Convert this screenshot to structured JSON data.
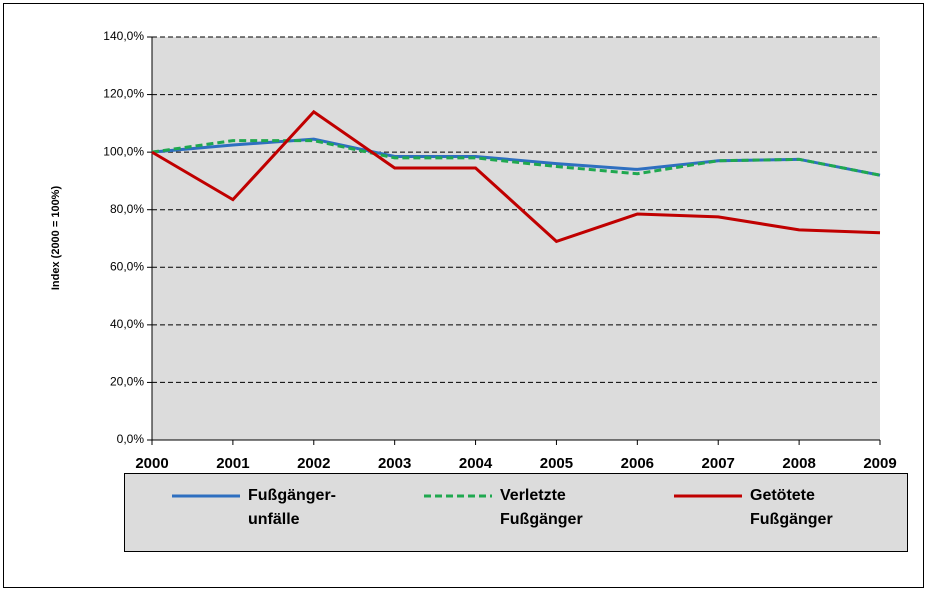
{
  "chart_data": {
    "type": "line",
    "y_label": "Index (2000 = 100%)",
    "x": [
      2000,
      2001,
      2002,
      2003,
      2004,
      2005,
      2006,
      2007,
      2008,
      2009
    ],
    "xlim": [
      2000,
      2009
    ],
    "series": [
      {
        "name": "Fußgänger-\nunfälle",
        "color": "#2e6fc0",
        "dash": false,
        "values": [
          100,
          102.5,
          104.5,
          98.5,
          98.5,
          96,
          94,
          97,
          97.5,
          92
        ]
      },
      {
        "name": "Verletzte\nFußgänger",
        "color": "#1fa84f",
        "dash": true,
        "values": [
          100,
          104,
          104,
          98,
          98,
          95,
          92.5,
          97,
          97.5,
          92
        ]
      },
      {
        "name": "Getötete\nFußgänger",
        "color": "#c00000",
        "dash": false,
        "values": [
          100,
          83.5,
          114,
          94.5,
          94.5,
          69,
          78.5,
          77.5,
          73,
          72
        ]
      }
    ],
    "ylim": [
      0,
      140
    ],
    "yticks": [
      {
        "value": 0,
        "label": "0,0%"
      },
      {
        "value": 20,
        "label": "20,0%"
      },
      {
        "value": 40,
        "label": "40,0%"
      },
      {
        "value": 60,
        "label": "60,0%"
      },
      {
        "value": 80,
        "label": "80,0%"
      },
      {
        "value": 100,
        "label": "100,0%"
      },
      {
        "value": 120,
        "label": "120,0%"
      },
      {
        "value": 140,
        "label": "140,0%"
      }
    ],
    "grid": true,
    "legend": "bottom"
  }
}
